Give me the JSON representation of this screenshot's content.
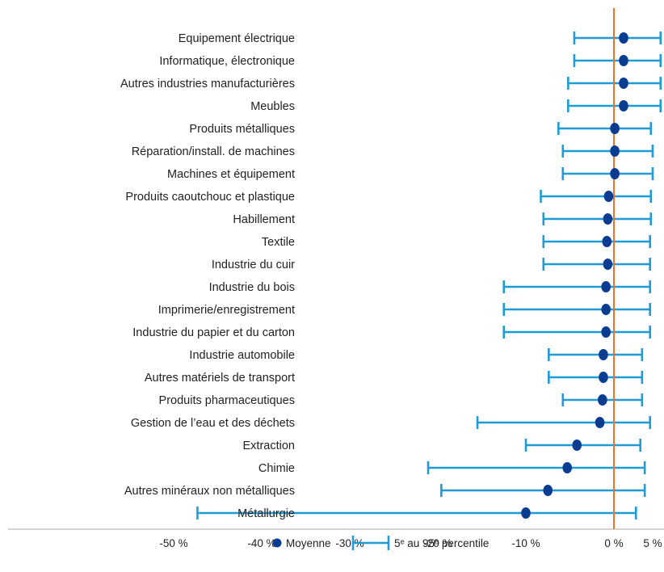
{
  "chart_data": {
    "type": "errorbar",
    "orientation": "horizontal",
    "categories": [
      "Equipement électrique",
      "Informatique, électronique",
      "Autres industries manufacturières",
      "Meubles",
      "Produits métalliques",
      "Réparation/install. de machines",
      "Machines et équipement",
      "Produits caoutchouc et plastique",
      "Habillement",
      "Textile",
      "Industrie du cuir",
      "Industrie du bois",
      "Imprimerie/enregistrement",
      "Industrie du papier et du carton",
      "Industrie automobile",
      "Autres matériels de transport",
      "Produits pharmaceutiques",
      "Gestion de l’eau et des déchets",
      "Extraction",
      "Chimie",
      "Autres minéraux non métalliques",
      "Métallurgie"
    ],
    "mean": [
      1.1,
      1.1,
      1.1,
      1.1,
      0.1,
      0.1,
      0.1,
      -0.6,
      -0.7,
      -0.8,
      -0.7,
      -0.9,
      -0.9,
      -0.9,
      -1.2,
      -1.2,
      -1.3,
      -1.6,
      -4.2,
      -5.3,
      -7.5,
      -10.0
    ],
    "p5": [
      -4.5,
      -4.5,
      -5.2,
      -5.2,
      -6.3,
      -5.8,
      -5.8,
      -8.3,
      -8.0,
      -8.0,
      -8.0,
      -12.5,
      -12.5,
      -12.5,
      -7.4,
      -7.4,
      -5.8,
      -15.5,
      -10.0,
      -21.1,
      -19.6,
      -47.3
    ],
    "p95": [
      5.3,
      5.3,
      5.3,
      5.3,
      4.2,
      4.4,
      4.4,
      4.2,
      4.2,
      4.1,
      4.1,
      4.1,
      4.1,
      4.1,
      3.2,
      3.2,
      3.2,
      4.1,
      3.0,
      3.5,
      3.5,
      2.5
    ],
    "x_ticks": [
      -50,
      -40,
      -30,
      -20,
      -10,
      0,
      5
    ],
    "x_tick_labels": [
      "-50 %",
      "-40 %",
      "-30 %",
      "-20 %",
      "-10 %",
      "0 %",
      "5 %"
    ],
    "xlim": [
      -56,
      6
    ],
    "reference_line_x": 0,
    "grid": false,
    "legend": {
      "position": "bottom",
      "items": [
        {
          "key": "mean",
          "label": "Moyenne"
        },
        {
          "key": "range",
          "label": "5ᵉ au 95ᵉ percentile"
        }
      ]
    },
    "colors": {
      "mean_marker": "#0a3d91",
      "range_bar": "#1f9bd7",
      "reference_line": "#e8742c",
      "axis": "#aaaaaa",
      "text": "#222222"
    }
  }
}
